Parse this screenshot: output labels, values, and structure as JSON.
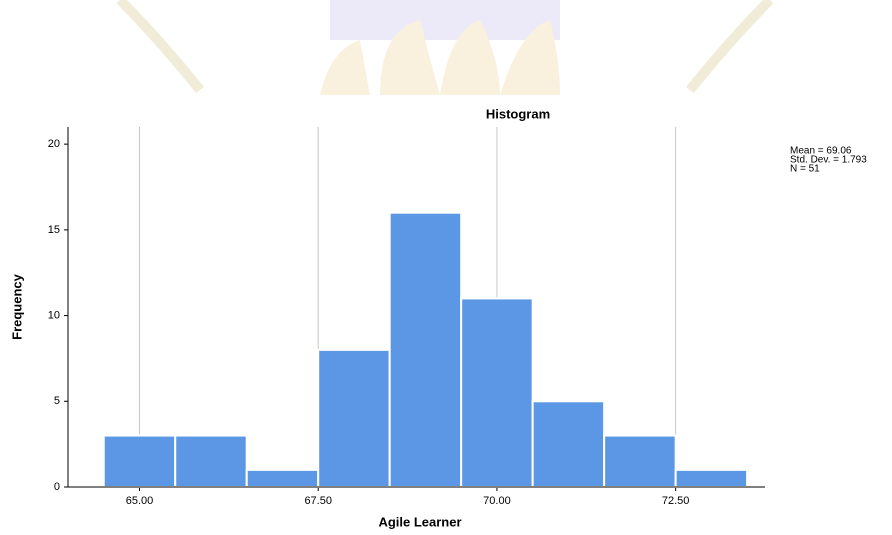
{
  "chart_data": {
    "type": "histogram",
    "title": "Histogram",
    "xlabel": "Agile Learner",
    "ylabel": "Frequency",
    "bins": [
      64.5,
      65.5,
      66.5,
      67.5,
      68.5,
      69.5,
      70.5,
      71.5,
      72.5,
      73.5
    ],
    "counts": [
      3,
      3,
      1,
      8,
      16,
      11,
      5,
      3,
      1
    ],
    "color": "#5b97e4",
    "xlim": [
      64,
      73.75
    ],
    "xticks": [
      {
        "value": 65,
        "label": "65.00"
      },
      {
        "value": 67.5,
        "label": "67.50"
      },
      {
        "value": 70,
        "label": "70.00"
      },
      {
        "value": 72.5,
        "label": "72.50"
      }
    ],
    "ylim": [
      0,
      21
    ],
    "yticks": [
      0,
      5,
      10,
      15,
      20
    ],
    "grid": "x",
    "annotations": [
      "Mean = 69.06",
      "Std. Dev. = 1.793",
      "N = 51"
    ]
  }
}
